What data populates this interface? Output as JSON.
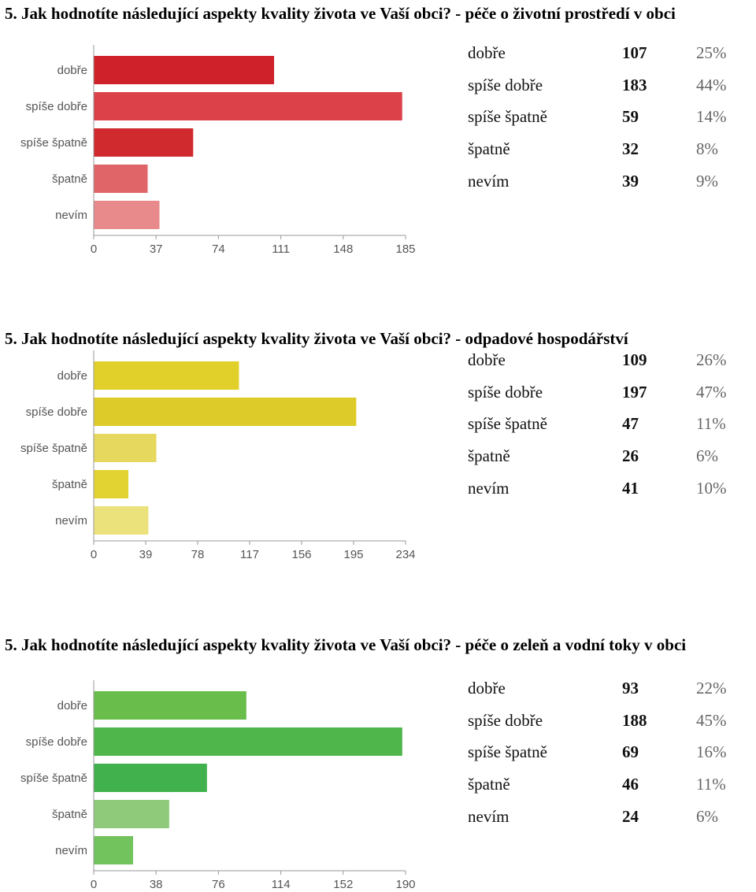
{
  "charts": [
    {
      "title": "5. Jak hodnotíte následující aspekty kvality života ve Vaší obci? - péče o životní prostředí v obci",
      "rows": [
        {
          "label": "dobře",
          "count": "107",
          "pct": "25%"
        },
        {
          "label": "spíše dobře",
          "count": "183",
          "pct": "44%"
        },
        {
          "label": "spíše špatně",
          "count": "59",
          "pct": "14%"
        },
        {
          "label": "špatně",
          "count": "32",
          "pct": "8%"
        },
        {
          "label": "nevím",
          "count": "39",
          "pct": "9%"
        }
      ]
    },
    {
      "title": "5. Jak hodnotíte následující aspekty kvality života ve Vaší obci? - odpadové hospodářství",
      "rows": [
        {
          "label": "dobře",
          "count": "109",
          "pct": "26%"
        },
        {
          "label": "spíše dobře",
          "count": "197",
          "pct": "47%"
        },
        {
          "label": "spíše špatně",
          "count": "47",
          "pct": "11%"
        },
        {
          "label": "špatně",
          "count": "26",
          "pct": "6%"
        },
        {
          "label": "nevím",
          "count": "41",
          "pct": "10%"
        }
      ]
    },
    {
      "title": "5. Jak hodnotíte následující aspekty kvality života ve Vaší obci? - péče o zeleň a vodní toky v obci",
      "rows": [
        {
          "label": "dobře",
          "count": "93",
          "pct": "22%"
        },
        {
          "label": "spíše dobře",
          "count": "188",
          "pct": "45%"
        },
        {
          "label": "spíše špatně",
          "count": "69",
          "pct": "16%"
        },
        {
          "label": "špatně",
          "count": "46",
          "pct": "11%"
        },
        {
          "label": "nevím",
          "count": "24",
          "pct": "6%"
        }
      ]
    }
  ],
  "chart_data": [
    {
      "type": "bar",
      "orientation": "horizontal",
      "title": "5. Jak hodnotíte následující aspekty kvality života ve Vaší obci? - péče o životní prostředí v obci",
      "categories": [
        "dobře",
        "spíše dobře",
        "spíše špatně",
        "špatně",
        "nevím"
      ],
      "values": [
        107,
        183,
        59,
        32,
        39
      ],
      "xticks": [
        0,
        37,
        74,
        111,
        148,
        185
      ],
      "xlim": [
        0,
        185
      ],
      "colors": [
        "#cf2129",
        "#dc4149",
        "#d02a2e",
        "#e06568",
        "#e8898b"
      ]
    },
    {
      "type": "bar",
      "orientation": "horizontal",
      "title": "5. Jak hodnotíte následující aspekty kvality života ve Vaší obci? - odpadové hospodářství",
      "categories": [
        "dobře",
        "spíše dobře",
        "spíše špatně",
        "špatně",
        "nevím"
      ],
      "values": [
        109,
        197,
        47,
        26,
        41
      ],
      "xticks": [
        0,
        39,
        78,
        117,
        156,
        195,
        234
      ],
      "xlim": [
        0,
        234
      ],
      "colors": [
        "#e1d02a",
        "#dccb28",
        "#e6d85e",
        "#e2d232",
        "#ebe27c"
      ]
    },
    {
      "type": "bar",
      "orientation": "horizontal",
      "title": "5. Jak hodnotíte následující aspekty kvality života ve Vaší obci? - péče o zeleň a vodní toky v obci",
      "categories": [
        "dobře",
        "spíše dobře",
        "spíše špatně",
        "špatně",
        "nevím"
      ],
      "values": [
        93,
        188,
        69,
        46,
        24
      ],
      "xticks": [
        0,
        38,
        76,
        114,
        152,
        190
      ],
      "xlim": [
        0,
        190
      ],
      "colors": [
        "#68bd4b",
        "#4fb64c",
        "#40b14d",
        "#8fca7a",
        "#72c25e"
      ]
    }
  ]
}
